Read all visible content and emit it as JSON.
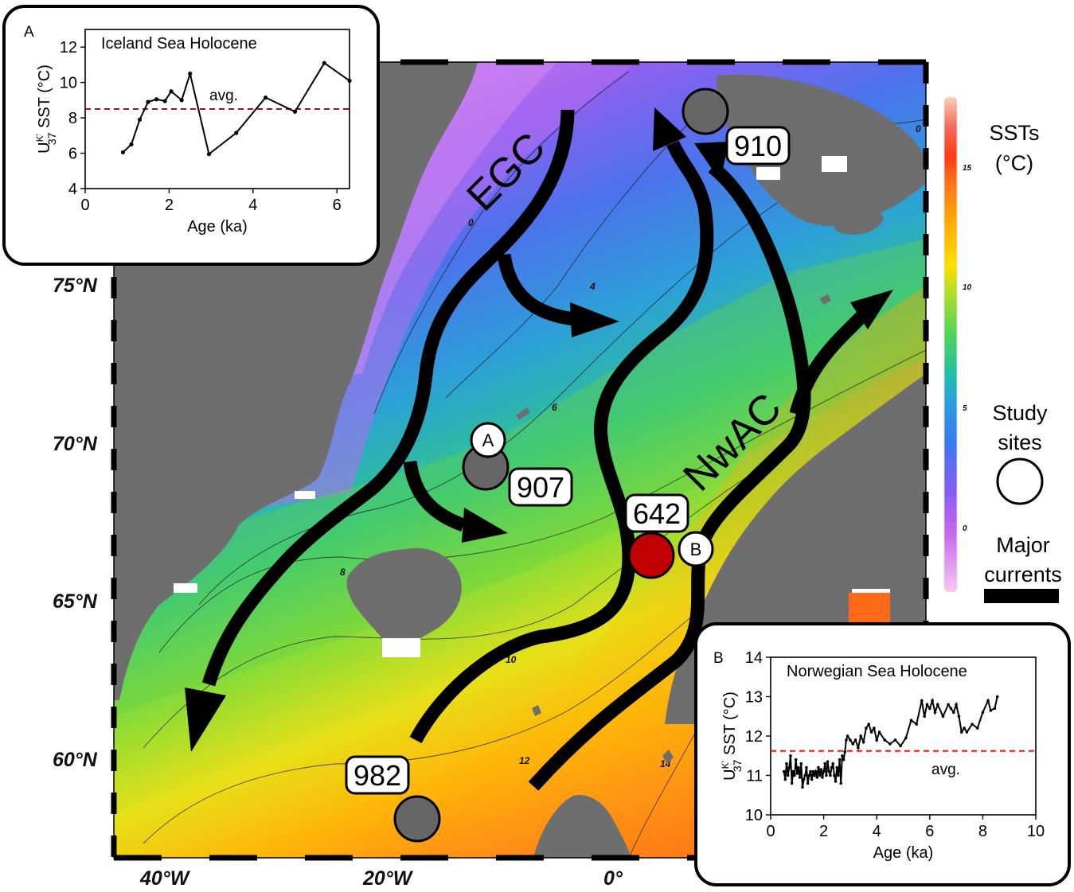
{
  "map": {
    "lat_labels": [
      "75°N",
      "70°N",
      "65°N",
      "60°N"
    ],
    "lon_labels": [
      "40°W",
      "20°W",
      "0°"
    ],
    "contour_labels": [
      "0",
      "4",
      "6",
      "8",
      "10",
      "12",
      "14",
      "0"
    ]
  },
  "currents": {
    "egc": "EGC",
    "nwac": "NwAC"
  },
  "sites": [
    {
      "label": "910",
      "color": "#666666"
    },
    {
      "label": "907",
      "color": "#666666"
    },
    {
      "label": "642",
      "color": "#c00000"
    },
    {
      "label": "982",
      "color": "#666666"
    }
  ],
  "site_letters": {
    "a": "A",
    "b": "B"
  },
  "legend": {
    "sst_title_1": "SSTs",
    "sst_title_2": "(°C)",
    "ticks": [
      "15",
      "10",
      "5",
      "0"
    ],
    "study_sites_1": "Study",
    "study_sites_2": "sites",
    "currents_1": "Major",
    "currents_2": "currents"
  },
  "colors": {
    "land": "#6e6e6e",
    "cold": "#d880f0",
    "warm": "#ff5a10",
    "site_default": "#666666",
    "site_highlight": "#c00000",
    "avg_line_a": "#8b1a1a",
    "avg_line_b": "#ee1111"
  },
  "inset_a": {
    "panel_label": "A",
    "title": "Iceland Sea Holocene",
    "ylabel": "U",
    "ylabel_sup": "K'",
    "ylabel_sub": "37",
    "ylabel_rest": " SST (°C)",
    "xlabel": "Age (ka)",
    "avg_label": "avg.",
    "xticks": [
      "0",
      "2",
      "4",
      "6"
    ],
    "yticks": [
      "4",
      "6",
      "8",
      "10",
      "12"
    ]
  },
  "inset_b": {
    "panel_label": "B",
    "title": "Norwegian Sea Holocene",
    "ylabel": "U",
    "ylabel_sup": "K'",
    "ylabel_sub": "37",
    "ylabel_rest": " SST (°C)",
    "xlabel": "Age (ka)",
    "avg_label": "avg.",
    "xticks": [
      "0",
      "2",
      "4",
      "6",
      "8",
      "10"
    ],
    "yticks": [
      "10",
      "11",
      "12",
      "13",
      "14"
    ]
  },
  "chart_data": [
    {
      "type": "line",
      "title": "Iceland Sea Holocene",
      "xlabel": "Age (ka)",
      "ylabel": "UK'37 SST (°C)",
      "xlim": [
        0,
        6.3
      ],
      "ylim": [
        4,
        13
      ],
      "average": 8.5,
      "series": [
        {
          "x": [
            0.9,
            1.1,
            1.3,
            1.5,
            1.7,
            1.9,
            2.05,
            2.3,
            2.5,
            2.95,
            3.6,
            4.3,
            5.0,
            5.7,
            6.3
          ],
          "y": [
            6.05,
            6.5,
            7.9,
            8.9,
            9.05,
            8.95,
            9.5,
            9.0,
            10.5,
            5.95,
            7.15,
            9.15,
            8.35,
            11.1,
            10.1
          ]
        }
      ]
    },
    {
      "type": "line",
      "title": "Norwegian Sea Holocene",
      "xlabel": "Age (ka)",
      "ylabel": "UK'37 SST (°C)",
      "xlim": [
        0,
        10
      ],
      "ylim": [
        10,
        14
      ],
      "average": 11.62,
      "series": [
        {
          "x": [
            0.5,
            0.55,
            0.6,
            0.65,
            0.7,
            0.75,
            0.8,
            0.85,
            0.9,
            0.95,
            1.0,
            1.05,
            1.1,
            1.15,
            1.2,
            1.25,
            1.3,
            1.35,
            1.4,
            1.45,
            1.5,
            1.55,
            1.6,
            1.65,
            1.7,
            1.75,
            1.8,
            1.85,
            1.9,
            1.95,
            2.0,
            2.05,
            2.1,
            2.15,
            2.2,
            2.25,
            2.3,
            2.35,
            2.4,
            2.45,
            2.5,
            2.55,
            2.6,
            2.65,
            2.7,
            2.75,
            2.8,
            2.85,
            2.9,
            3.0,
            3.1,
            3.2,
            3.3,
            3.4,
            3.5,
            3.6,
            3.7,
            3.8,
            3.9,
            4.0,
            4.1,
            4.3,
            4.5,
            4.7,
            4.9,
            5.1,
            5.3,
            5.5,
            5.7,
            5.8,
            5.9,
            6.0,
            6.1,
            6.2,
            6.3,
            6.5,
            6.7,
            6.8,
            6.9,
            7.0,
            7.1,
            7.2,
            7.3,
            7.4,
            7.6,
            7.8,
            8.0,
            8.2,
            8.3,
            8.45,
            8.55
          ],
          "y": [
            11.1,
            10.9,
            11.3,
            11.0,
            11.2,
            11.5,
            10.8,
            11.1,
            11.0,
            11.4,
            11.05,
            11.2,
            10.95,
            11.3,
            10.7,
            10.9,
            11.0,
            11.2,
            10.8,
            11.0,
            11.1,
            10.9,
            11.1,
            11.0,
            11.1,
            10.95,
            11.2,
            11.0,
            11.15,
            10.95,
            11.1,
            11.3,
            11.0,
            11.35,
            11.1,
            11.0,
            11.2,
            11.3,
            11.0,
            10.85,
            11.2,
            11.0,
            11.4,
            10.8,
            11.5,
            11.4,
            11.6,
            11.9,
            12.0,
            11.9,
            11.8,
            11.9,
            11.7,
            12.0,
            11.85,
            12.2,
            12.3,
            12.1,
            12.2,
            11.9,
            12.1,
            11.9,
            11.8,
            11.9,
            11.75,
            11.95,
            12.4,
            12.3,
            12.9,
            12.5,
            12.8,
            12.7,
            12.9,
            12.6,
            12.8,
            12.5,
            12.8,
            12.7,
            12.6,
            12.8,
            12.5,
            12.1,
            12.2,
            12.1,
            12.3,
            12.2,
            12.6,
            12.9,
            12.65,
            12.7,
            13.0
          ]
        }
      ]
    }
  ]
}
